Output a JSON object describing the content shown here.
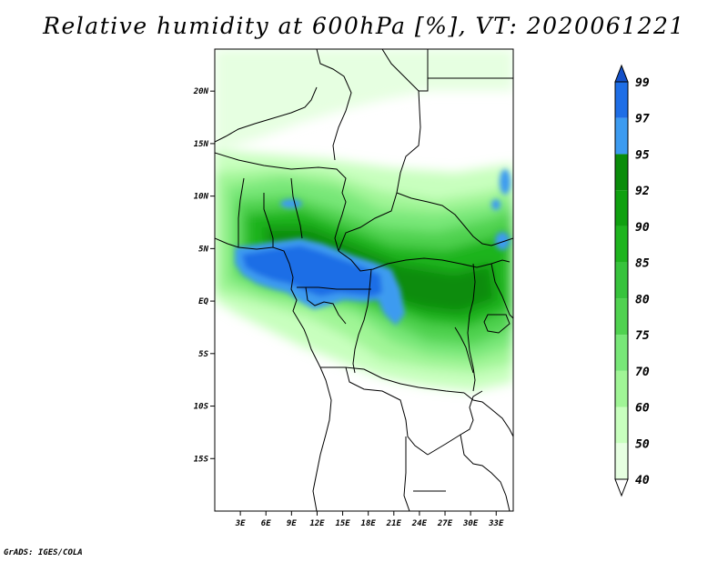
{
  "title": "Relative humidity at 600hPa [%], VT: 2020061221",
  "credit": "GrADS: IGES/COLA",
  "map": {
    "lat_ticks": [
      "20N",
      "15N",
      "10N",
      "5N",
      "EQ",
      "5S",
      "10S",
      "15S"
    ],
    "lon_ticks": [
      "3E",
      "6E",
      "9E",
      "12E",
      "15E",
      "18E",
      "21E",
      "24E",
      "27E",
      "30E",
      "33E"
    ],
    "lat_range": [
      -20,
      24
    ],
    "lon_range": [
      0,
      35
    ]
  },
  "colorbar": {
    "levels": [
      "40",
      "50",
      "60",
      "70",
      "75",
      "80",
      "85",
      "90",
      "92",
      "95",
      "97",
      "99"
    ],
    "colors": [
      "#ffffff",
      "#e6ffe1",
      "#c8ffbe",
      "#a0f596",
      "#78e778",
      "#50d250",
      "#37c33c",
      "#1eb41e",
      "#0fa00f",
      "#0a8c0a",
      "#3c9bf0",
      "#1e6ee6",
      "#1450c8"
    ]
  }
}
